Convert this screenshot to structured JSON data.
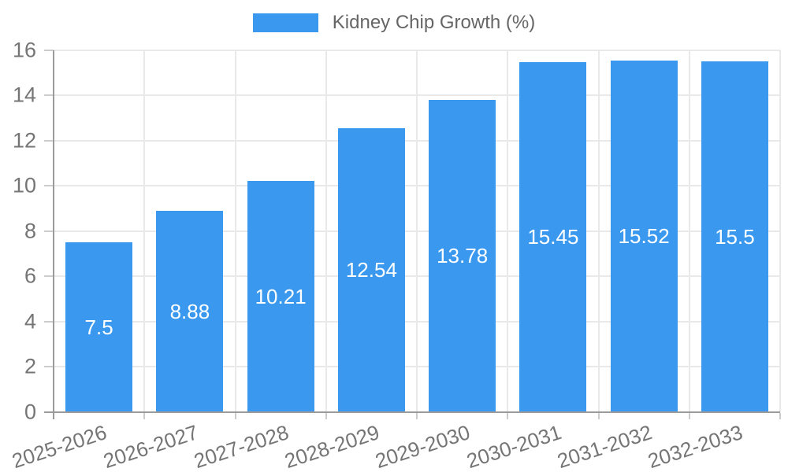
{
  "legend": {
    "label": "Kidney Chip Growth (%)"
  },
  "chart_data": {
    "type": "bar",
    "title": "Kidney Chip Growth (%)",
    "legend_label": "Kidney Chip Growth (%)",
    "legend_position": "top",
    "categories": [
      "2025-2026",
      "2026-2027",
      "2027-2028",
      "2028-2029",
      "2029-2030",
      "2030-2031",
      "2031-2032",
      "2032-2033"
    ],
    "values": [
      7.5,
      8.88,
      10.21,
      12.54,
      13.78,
      15.45,
      15.52,
      15.5
    ],
    "value_labels": [
      "7.5",
      "8.88",
      "10.21",
      "12.54",
      "13.78",
      "15.45",
      "15.52",
      "15.5"
    ],
    "xlabel": "",
    "ylabel": "",
    "ylim": [
      0,
      16
    ],
    "yticks": [
      0,
      2,
      4,
      6,
      8,
      10,
      12,
      14,
      16
    ],
    "grid": true,
    "colors": {
      "bar": "#3a99ee",
      "bar_label_text": "#ffffff",
      "axis_line": "#9b9b9b",
      "gridline": "#e9e9e9",
      "tick": "#cccccc",
      "axis_label_text": "#757575",
      "legend_text": "#666666",
      "background": "#ffffff"
    }
  }
}
